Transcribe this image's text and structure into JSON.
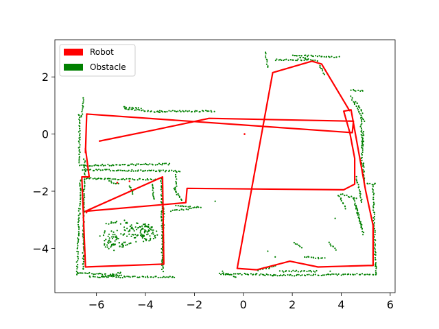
{
  "chart_data": {
    "type": "line",
    "title": "",
    "xlabel": "",
    "ylabel": "",
    "xlim": [
      -7.7,
      6.2
    ],
    "ylim": [
      -5.55,
      3.3
    ],
    "xticks": [
      -6,
      -4,
      -2,
      0,
      2,
      4,
      6
    ],
    "yticks": [
      2,
      0,
      -2,
      -4
    ],
    "xtick_labels": [
      "−6",
      "−4",
      "−2",
      "0",
      "2",
      "4",
      "6"
    ],
    "ytick_labels": [
      "2",
      "0",
      "−2",
      "−4"
    ],
    "grid": false,
    "legend": {
      "location": "upper-left",
      "entries": [
        {
          "label": "Robot",
          "color": "#ff0000"
        },
        {
          "label": "Obstacle",
          "color": "#008000"
        }
      ]
    },
    "series": [
      {
        "name": "Robot",
        "kind": "line",
        "color": "#ff0000",
        "x": [
          -5.9,
          -3.6,
          -1.4,
          4.5,
          4.45,
          -6.4,
          -6.45,
          -6.45,
          -6.3,
          -6.6,
          -6.45,
          -3.25,
          -3.3,
          -6.45,
          -6.4,
          -6.45,
          -2.35,
          -2.3,
          4.1,
          4.55,
          4.55,
          4.35,
          4.1,
          4.4,
          5.0,
          5.3,
          5.3,
          5.1,
          3.05,
          1.9,
          0.55,
          -0.25,
          1.2,
          2.8,
          3.2,
          4.35
        ],
        "y": [
          -0.25,
          0.15,
          0.55,
          0.45,
          0.05,
          0.7,
          -0.65,
          -0.5,
          -1.5,
          -1.5,
          -4.65,
          -4.55,
          -1.5,
          -2.7,
          -2.75,
          -2.7,
          -2.4,
          -1.9,
          -1.95,
          -1.75,
          -0.85,
          0.05,
          0.8,
          0.85,
          -2.0,
          -3.2,
          -4.6,
          -4.6,
          -4.65,
          -4.45,
          -4.75,
          -4.7,
          2.15,
          2.55,
          2.45,
          0.8
        ]
      },
      {
        "name": "Obstacle",
        "kind": "scatter",
        "color": "#008000",
        "segments": [
          [
            [
              -6.7,
              0.7
            ],
            [
              -6.7,
              -1.0
            ]
          ],
          [
            [
              -6.55,
              1.25
            ],
            [
              -6.6,
              0.6
            ]
          ],
          [
            [
              -6.5,
              -0.9
            ],
            [
              -6.45,
              -1.5
            ]
          ],
          [
            [
              -6.7,
              -1.1
            ],
            [
              -3.0,
              -1.05
            ]
          ],
          [
            [
              -6.55,
              -1.25
            ],
            [
              -2.6,
              -1.3
            ]
          ],
          [
            [
              -6.65,
              -1.6
            ],
            [
              -6.8,
              -4.9
            ]
          ],
          [
            [
              -6.5,
              -1.5
            ],
            [
              -6.55,
              -4.75
            ]
          ],
          [
            [
              -6.5,
              -1.55
            ],
            [
              -3.6,
              -1.6
            ]
          ],
          [
            [
              -3.35,
              -1.5
            ],
            [
              -3.3,
              -4.6
            ]
          ],
          [
            [
              -3.25,
              -2.6
            ],
            [
              -3.3,
              -4.8
            ]
          ],
          [
            [
              -6.8,
              -4.85
            ],
            [
              -5.0,
              -4.95
            ]
          ],
          [
            [
              -6.3,
              -5.0
            ],
            [
              -2.8,
              -5.0
            ]
          ],
          [
            [
              -5.0,
              -4.85
            ],
            [
              -5.8,
              -5.0
            ]
          ],
          [
            [
              -2.75,
              -1.35
            ],
            [
              -2.75,
              -2.1
            ]
          ],
          [
            [
              -2.85,
              -1.9
            ],
            [
              -2.5,
              -2.3
            ]
          ],
          [
            [
              -2.95,
              -2.7
            ],
            [
              -1.75,
              -2.55
            ]
          ],
          [
            [
              -2.75,
              -2.5
            ],
            [
              -2.2,
              -2.55
            ]
          ],
          [
            [
              -3.7,
              -1.75
            ],
            [
              -3.65,
              -2.3
            ]
          ],
          [
            [
              -4.65,
              -1.8
            ],
            [
              -4.5,
              -2.1
            ]
          ],
          [
            [
              -5.5,
              -1.65
            ],
            [
              -5.1,
              -1.75
            ]
          ],
          [
            [
              -4.85,
              0.9
            ],
            [
              -3.4,
              0.75
            ]
          ],
          [
            [
              -3.5,
              0.8
            ],
            [
              -1.2,
              0.8
            ]
          ],
          [
            [
              -4.9,
              0.95
            ],
            [
              -4.2,
              0.9
            ]
          ],
          [
            [
              -1.0,
              -4.9
            ],
            [
              0.5,
              -4.9
            ]
          ],
          [
            [
              -0.8,
              -4.85
            ],
            [
              -0.3,
              -5.0
            ]
          ],
          [
            [
              0.5,
              -4.9
            ],
            [
              1.3,
              -4.95
            ]
          ],
          [
            [
              1.2,
              -4.95
            ],
            [
              5.4,
              -4.9
            ]
          ],
          [
            [
              1.5,
              -4.8
            ],
            [
              3.0,
              -4.8
            ]
          ],
          [
            [
              0.6,
              -4.75
            ],
            [
              1.3,
              -4.6
            ]
          ],
          [
            [
              0.9,
              2.85
            ],
            [
              1.0,
              2.35
            ]
          ],
          [
            [
              1.3,
              2.6
            ],
            [
              2.6,
              2.6
            ]
          ],
          [
            [
              2.0,
              2.75
            ],
            [
              3.9,
              2.7
            ]
          ],
          [
            [
              2.3,
              2.7
            ],
            [
              3.0,
              2.55
            ]
          ],
          [
            [
              3.1,
              2.45
            ],
            [
              3.3,
              2.1
            ]
          ],
          [
            [
              4.4,
              1.55
            ],
            [
              4.9,
              1.5
            ]
          ],
          [
            [
              4.4,
              1.3
            ],
            [
              4.95,
              0.45
            ]
          ],
          [
            [
              4.6,
              1.15
            ],
            [
              4.85,
              0.75
            ]
          ],
          [
            [
              4.8,
              0.55
            ],
            [
              4.85,
              -0.35
            ]
          ],
          [
            [
              4.9,
              0.1
            ],
            [
              4.9,
              -0.4
            ]
          ],
          [
            [
              4.85,
              -0.4
            ],
            [
              4.85,
              -1.1
            ]
          ],
          [
            [
              4.9,
              -1.0
            ],
            [
              4.95,
              -1.7
            ]
          ],
          [
            [
              4.6,
              -1.5
            ],
            [
              4.85,
              -2.4
            ]
          ],
          [
            [
              5.05,
              -1.75
            ],
            [
              5.4,
              -1.75
            ]
          ],
          [
            [
              5.3,
              -1.8
            ],
            [
              5.4,
              -4.65
            ]
          ],
          [
            [
              5.4,
              -4.6
            ],
            [
              5.45,
              -4.9
            ]
          ],
          [
            [
              4.0,
              -2.1
            ],
            [
              4.6,
              -2.25
            ]
          ],
          [
            [
              3.9,
              -2.15
            ],
            [
              4.2,
              -2.6
            ]
          ],
          [
            [
              4.5,
              -2.25
            ],
            [
              4.85,
              -3.3
            ]
          ],
          [
            [
              4.6,
              -2.5
            ],
            [
              4.9,
              -3.5
            ]
          ],
          [
            [
              3.5,
              -3.8
            ],
            [
              3.8,
              -4.05
            ]
          ],
          [
            [
              2.5,
              -4.3
            ],
            [
              3.3,
              -4.35
            ]
          ],
          [
            [
              2.1,
              -3.8
            ],
            [
              2.4,
              -3.95
            ]
          ]
        ],
        "clusters": [
          {
            "x": -5.0,
            "y": -3.45,
            "rx": 0.9,
            "ry": 0.45
          },
          {
            "x": -4.4,
            "y": -3.35,
            "rx": 0.7,
            "ry": 0.3
          },
          {
            "x": -5.2,
            "y": -3.8,
            "rx": 0.5,
            "ry": 0.3
          },
          {
            "x": -3.9,
            "y": -3.5,
            "rx": 0.4,
            "ry": 0.3
          }
        ],
        "isolated": [
          [
            -1.15,
            -2.35
          ],
          [
            1.1,
            1.7
          ],
          [
            3.75,
            -2.95
          ],
          [
            1.0,
            -4.1
          ],
          [
            1.3,
            -4.3
          ],
          [
            -0.85,
            -4.8
          ],
          [
            1.05,
            -4.7
          ],
          [
            3.55,
            -4.8
          ]
        ]
      }
    ]
  }
}
